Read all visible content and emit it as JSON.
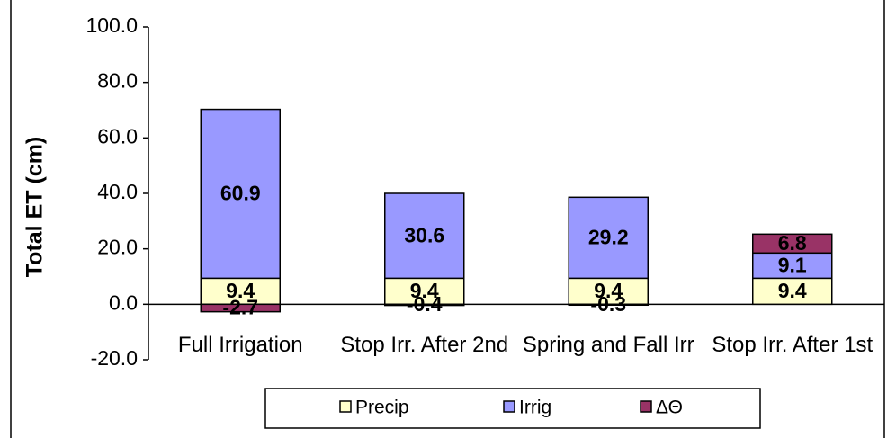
{
  "chart_data": {
    "type": "stacked_bar",
    "y_label": "Total ET (cm)",
    "categories": [
      "Full Irrigation",
      "Stop Irr. After 2nd",
      "Spring and Fall Irr",
      "Stop Irr. After 1st"
    ],
    "series": [
      {
        "name": "Precip",
        "color": "#ffffcc",
        "values": [
          9.4,
          9.4,
          9.4,
          9.4
        ]
      },
      {
        "name": "Irrig",
        "color": "#9999ff",
        "values": [
          60.9,
          30.6,
          29.2,
          9.1
        ]
      },
      {
        "name": "ΔΘ",
        "color": "#993366",
        "values": [
          -2.7,
          -0.4,
          -0.3,
          6.8
        ]
      }
    ],
    "ylim": [
      -20,
      100
    ],
    "yticks": [
      {
        "value": -20,
        "label": "-20.0"
      },
      {
        "value": 0,
        "label": "0.0"
      },
      {
        "value": 20,
        "label": "20.0"
      },
      {
        "value": 40,
        "label": "40.0"
      },
      {
        "value": 60,
        "label": "60.0"
      },
      {
        "value": 80,
        "label": "80.0"
      },
      {
        "value": 100,
        "label": "100.0"
      }
    ],
    "legend_position": "bottom"
  }
}
